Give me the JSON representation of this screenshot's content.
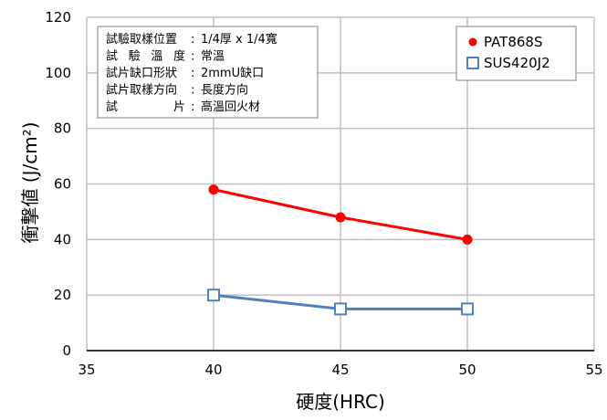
{
  "chart_data": {
    "type": "line",
    "xlabel": "硬度(HRC)",
    "ylabel": "衝撃値 (J/cm²)",
    "xlim": [
      35,
      55
    ],
    "ylim": [
      0,
      120
    ],
    "x_ticks": [
      "35",
      "40",
      "45",
      "50",
      "55"
    ],
    "y_ticks": [
      "0",
      "20",
      "40",
      "60",
      "80",
      "100",
      "120"
    ],
    "grid": true,
    "legend_position": "top-right",
    "series": [
      {
        "name": "PAT868S",
        "color": "#ff0000",
        "marker": "filled-circle",
        "x": [
          40,
          45,
          50
        ],
        "y": [
          58,
          48,
          40
        ]
      },
      {
        "name": "SUS420J2",
        "color": "#4f81bd",
        "marker": "open-square",
        "x": [
          40,
          45,
          50
        ],
        "y": [
          20,
          15,
          15
        ]
      }
    ],
    "annotation": {
      "lines": [
        {
          "label": "試驗取樣位置",
          "value": "1/4厚 x 1/4寬"
        },
        {
          "label": "試 驗 溫 度",
          "value": "常溫"
        },
        {
          "label": "試片缺口形狀",
          "value": "2mmU缺口"
        },
        {
          "label": "試片取樣方向",
          "value": "長度方向"
        },
        {
          "label": "試 片",
          "value": "高溫回火材"
        }
      ]
    }
  }
}
